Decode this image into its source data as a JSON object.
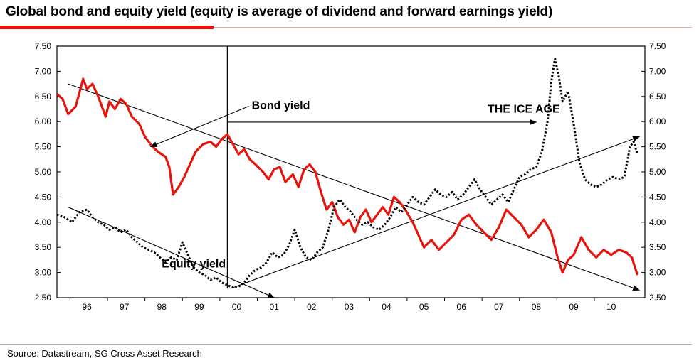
{
  "title": "Global bond and equity yield (equity is average of dividend and forward earnings yield)",
  "source": "Source: Datastream, SG Cross Asset Research",
  "colors": {
    "bond": "#e8140c",
    "equity": "#000000",
    "title_rule": "#e8140c",
    "title_rule_light": "#f4a8a3"
  },
  "chart_data": {
    "type": "line",
    "xlim": [
      1995.2,
      2010.9
    ],
    "ylim": [
      2.5,
      7.5
    ],
    "y_ticks": [
      "2.50",
      "3.00",
      "3.50",
      "4.00",
      "4.50",
      "5.00",
      "5.50",
      "6.00",
      "6.50",
      "7.00",
      "7.50"
    ],
    "x_ticks": [
      {
        "label": "96",
        "x": 1996.0
      },
      {
        "label": "97",
        "x": 1997.0
      },
      {
        "label": "98",
        "x": 1998.0
      },
      {
        "label": "99",
        "x": 1999.0
      },
      {
        "label": "00",
        "x": 2000.0
      },
      {
        "label": "01",
        "x": 2001.0
      },
      {
        "label": "02",
        "x": 2002.0
      },
      {
        "label": "03",
        "x": 2003.0
      },
      {
        "label": "04",
        "x": 2004.0
      },
      {
        "label": "05",
        "x": 2005.0
      },
      {
        "label": "06",
        "x": 2006.0
      },
      {
        "label": "07",
        "x": 2007.0
      },
      {
        "label": "08",
        "x": 2008.0
      },
      {
        "label": "09",
        "x": 2009.0
      },
      {
        "label": "10",
        "x": 2010.0
      }
    ],
    "series": [
      {
        "name": "Bond yield",
        "style": "solid",
        "x": [
          1995.2,
          1995.35,
          1995.5,
          1995.7,
          1995.9,
          1996.0,
          1996.15,
          1996.3,
          1996.5,
          1996.6,
          1996.75,
          1996.9,
          1997.05,
          1997.2,
          1997.4,
          1997.55,
          1997.75,
          1997.9,
          1998.1,
          1998.2,
          1998.3,
          1998.45,
          1998.6,
          1998.75,
          1998.9,
          1999.1,
          1999.3,
          1999.45,
          1999.6,
          1999.75,
          1999.9,
          2000.05,
          2000.2,
          2000.35,
          2000.5,
          2000.7,
          2000.85,
          2001.0,
          2001.15,
          2001.3,
          2001.5,
          2001.65,
          2001.8,
          2001.95,
          2002.1,
          2002.25,
          2002.4,
          2002.55,
          2002.7,
          2002.85,
          2003.0,
          2003.15,
          2003.3,
          2003.45,
          2003.6,
          2003.75,
          2003.9,
          2004.05,
          2004.2,
          2004.35,
          2004.5,
          2004.7,
          2004.85,
          2005.0,
          2005.2,
          2005.4,
          2005.6,
          2005.8,
          2006.0,
          2006.2,
          2006.4,
          2006.6,
          2006.8,
          2007.0,
          2007.2,
          2007.4,
          2007.6,
          2007.8,
          2008.0,
          2008.2,
          2008.4,
          2008.55,
          2008.7,
          2008.85,
          2009.0,
          2009.2,
          2009.4,
          2009.6,
          2009.8,
          2010.0,
          2010.2,
          2010.4,
          2010.55,
          2010.7
        ],
        "values": [
          6.55,
          6.45,
          6.15,
          6.3,
          6.85,
          6.65,
          6.75,
          6.5,
          6.1,
          6.4,
          6.25,
          6.45,
          6.35,
          6.1,
          5.95,
          5.7,
          5.5,
          5.4,
          5.3,
          5.1,
          4.55,
          4.7,
          4.9,
          5.15,
          5.4,
          5.55,
          5.6,
          5.5,
          5.65,
          5.75,
          5.55,
          5.35,
          5.45,
          5.25,
          5.15,
          5.0,
          4.85,
          5.05,
          5.1,
          4.8,
          4.95,
          4.7,
          5.05,
          5.15,
          5.0,
          4.6,
          4.25,
          4.4,
          4.1,
          3.95,
          4.05,
          3.8,
          4.1,
          4.25,
          4.0,
          4.15,
          4.3,
          4.15,
          4.5,
          4.4,
          4.25,
          4.0,
          3.75,
          3.5,
          3.65,
          3.45,
          3.6,
          3.75,
          4.05,
          4.15,
          3.95,
          3.8,
          3.65,
          3.9,
          4.25,
          4.1,
          3.95,
          3.7,
          3.85,
          4.05,
          3.8,
          3.35,
          3.0,
          3.25,
          3.35,
          3.7,
          3.45,
          3.3,
          3.45,
          3.35,
          3.45,
          3.4,
          3.3,
          2.95
        ]
      },
      {
        "name": "Equity yield",
        "style": "dotted",
        "x": [
          1995.2,
          1995.4,
          1995.6,
          1995.8,
          1996.0,
          1996.15,
          1996.3,
          1996.45,
          1996.6,
          1996.75,
          1996.9,
          1997.05,
          1997.2,
          1997.35,
          1997.5,
          1997.65,
          1997.8,
          1997.95,
          1998.1,
          1998.25,
          1998.4,
          1998.55,
          1998.7,
          1998.85,
          1999.0,
          1999.15,
          1999.3,
          1999.45,
          1999.6,
          1999.75,
          1999.9,
          2000.05,
          2000.2,
          2000.35,
          2000.5,
          2000.65,
          2000.8,
          2000.95,
          2001.1,
          2001.25,
          2001.4,
          2001.55,
          2001.7,
          2001.85,
          2002.0,
          2002.15,
          2002.3,
          2002.45,
          2002.6,
          2002.75,
          2002.9,
          2003.05,
          2003.2,
          2003.35,
          2003.5,
          2003.65,
          2003.8,
          2003.95,
          2004.1,
          2004.25,
          2004.4,
          2004.55,
          2004.7,
          2004.85,
          2005.0,
          2005.15,
          2005.3,
          2005.45,
          2005.6,
          2005.75,
          2005.9,
          2006.05,
          2006.2,
          2006.35,
          2006.5,
          2006.65,
          2006.8,
          2006.95,
          2007.1,
          2007.25,
          2007.4,
          2007.55,
          2007.7,
          2007.85,
          2008.0,
          2008.15,
          2008.3,
          2008.4,
          2008.5,
          2008.6,
          2008.7,
          2008.85,
          2009.0,
          2009.15,
          2009.3,
          2009.45,
          2009.6,
          2009.75,
          2009.9,
          2010.05,
          2010.2,
          2010.35,
          2010.5,
          2010.6,
          2010.7
        ],
        "values": [
          4.15,
          4.1,
          4.0,
          4.2,
          4.25,
          4.1,
          4.0,
          3.95,
          3.85,
          3.9,
          3.8,
          3.85,
          3.7,
          3.6,
          3.5,
          3.45,
          3.4,
          3.3,
          3.2,
          3.3,
          3.25,
          3.6,
          3.35,
          3.1,
          3.0,
          2.95,
          2.85,
          2.9,
          2.8,
          2.75,
          2.7,
          2.72,
          2.8,
          2.95,
          3.05,
          3.1,
          3.2,
          3.4,
          3.3,
          3.35,
          3.55,
          3.85,
          3.5,
          3.3,
          3.25,
          3.4,
          3.5,
          3.85,
          4.3,
          4.45,
          4.3,
          4.2,
          4.05,
          3.95,
          4.0,
          3.9,
          3.85,
          3.95,
          4.1,
          4.3,
          4.2,
          4.35,
          4.5,
          4.4,
          4.35,
          4.5,
          4.65,
          4.55,
          4.5,
          4.6,
          4.45,
          4.55,
          4.7,
          4.85,
          4.65,
          4.5,
          4.35,
          4.45,
          4.55,
          4.4,
          4.65,
          4.9,
          4.95,
          5.05,
          5.1,
          5.4,
          6.0,
          6.8,
          7.25,
          6.9,
          6.4,
          6.6,
          5.95,
          5.2,
          4.85,
          4.75,
          4.7,
          4.75,
          4.85,
          4.9,
          4.85,
          4.9,
          5.5,
          5.6,
          5.35
        ]
      }
    ],
    "trend_lines": [
      {
        "from": [
          1995.5,
          6.75
        ],
        "to": [
          2010.75,
          2.65
        ]
      },
      {
        "from": [
          1995.5,
          4.3
        ],
        "to": [
          2001.0,
          2.5
        ]
      },
      {
        "from": [
          1999.9,
          2.7
        ],
        "to": [
          2010.75,
          5.7
        ]
      }
    ],
    "vertical_marker": {
      "x": 1999.75
    },
    "annotations": [
      {
        "text": "Bond yield",
        "x": 2000.4,
        "y": 6.25,
        "arrow_to": [
          1997.7,
          5.5
        ]
      },
      {
        "text": "THE ICE AGE",
        "x": 2006.7,
        "y": 6.18,
        "arrow_from": [
          1999.75,
          5.99
        ],
        "arrow_to": [
          2008.0,
          5.99
        ]
      },
      {
        "text": "Equity yield",
        "x": 1998.0,
        "y": 3.1
      }
    ]
  }
}
